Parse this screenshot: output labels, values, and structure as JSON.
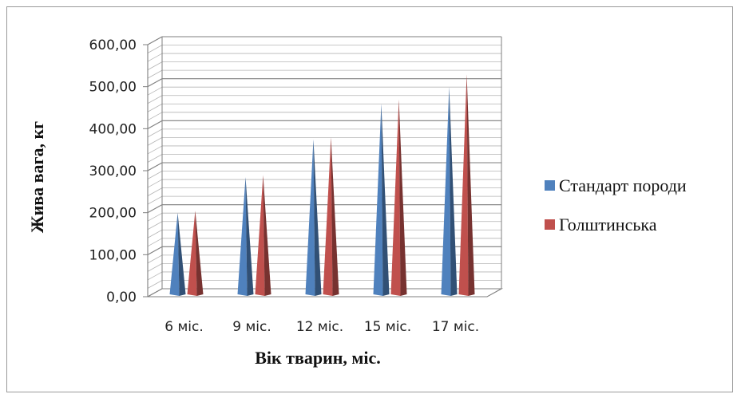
{
  "chart_data": {
    "type": "bar",
    "title": "",
    "xlabel": "Вік тварин, міс.",
    "ylabel": "Жива вага, кг",
    "categories": [
      "6 міс.",
      "9 міс.",
      "12 міс.",
      "15 міс.",
      "17 міс."
    ],
    "series": [
      {
        "name": "Стандарт породи",
        "values": [
          190,
          275,
          365,
          450,
          490
        ],
        "color": "#4f81bd"
      },
      {
        "name": "Голштинська",
        "values": [
          195,
          280,
          370,
          460,
          520
        ],
        "color": "#c0504d"
      }
    ],
    "ylim": [
      0,
      600
    ],
    "yticks": [
      "0,00",
      "100,00",
      "200,00",
      "300,00",
      "400,00",
      "500,00",
      "600,00"
    ],
    "grid": true,
    "legend_position": "right"
  }
}
